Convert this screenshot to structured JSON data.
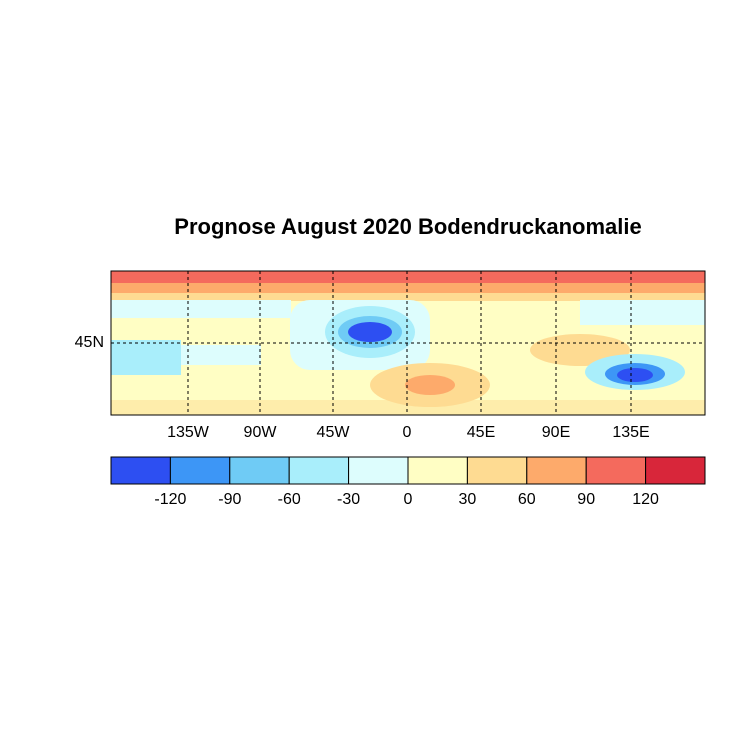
{
  "title": "Prognose August 2020 Bodendruckanomalie",
  "map": {
    "lon_labels": [
      "135W",
      "90W",
      "45W",
      "0",
      "45E",
      "90E",
      "135E"
    ],
    "lat_labels": [
      "45N"
    ]
  },
  "colorbar": {
    "colors": [
      "#2d4ff2",
      "#3d96f6",
      "#6fcbf5",
      "#a9eefb",
      "#ddfdfd",
      "#fffec4",
      "#fedb92",
      "#fdaa6b",
      "#f46a5d",
      "#d8263a"
    ],
    "ticks": [
      -120,
      -90,
      -60,
      -30,
      0,
      30,
      60,
      90,
      120
    ]
  }
}
